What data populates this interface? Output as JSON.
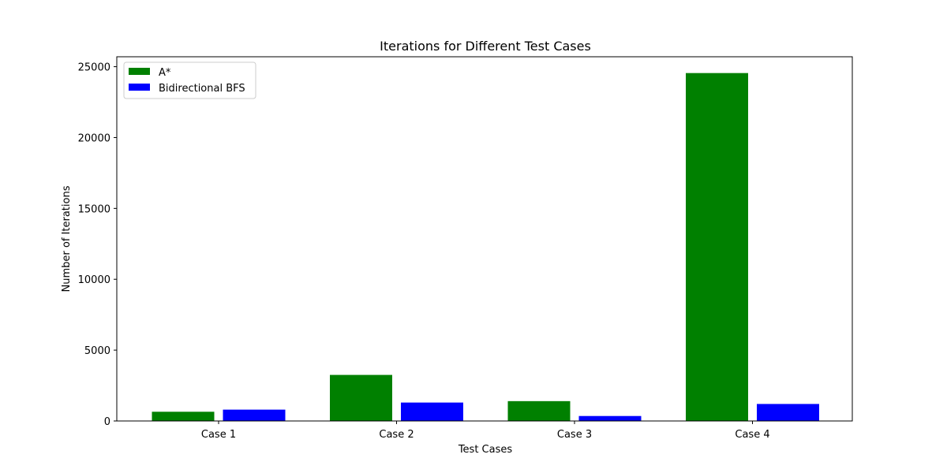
{
  "chart_data": {
    "type": "bar",
    "title": "Iterations for Different Test Cases",
    "xlabel": "Test Cases",
    "ylabel": "Number of Iterations",
    "categories": [
      "Case 1",
      "Case 2",
      "Case 3",
      "Case 4"
    ],
    "series": [
      {
        "name": "A*",
        "color": "#008000",
        "values": [
          650,
          3250,
          1400,
          24550
        ]
      },
      {
        "name": "Bidirectional BFS",
        "color": "#0000ff",
        "values": [
          800,
          1300,
          350,
          1200
        ]
      }
    ],
    "ylim": [
      0,
      25700
    ],
    "yticks": [
      0,
      5000,
      10000,
      15000,
      20000,
      25000
    ],
    "ytick_labels": [
      "0",
      "5000",
      "10000",
      "15000",
      "20000",
      "25000"
    ],
    "grid": false,
    "legend_position": "top-left"
  }
}
